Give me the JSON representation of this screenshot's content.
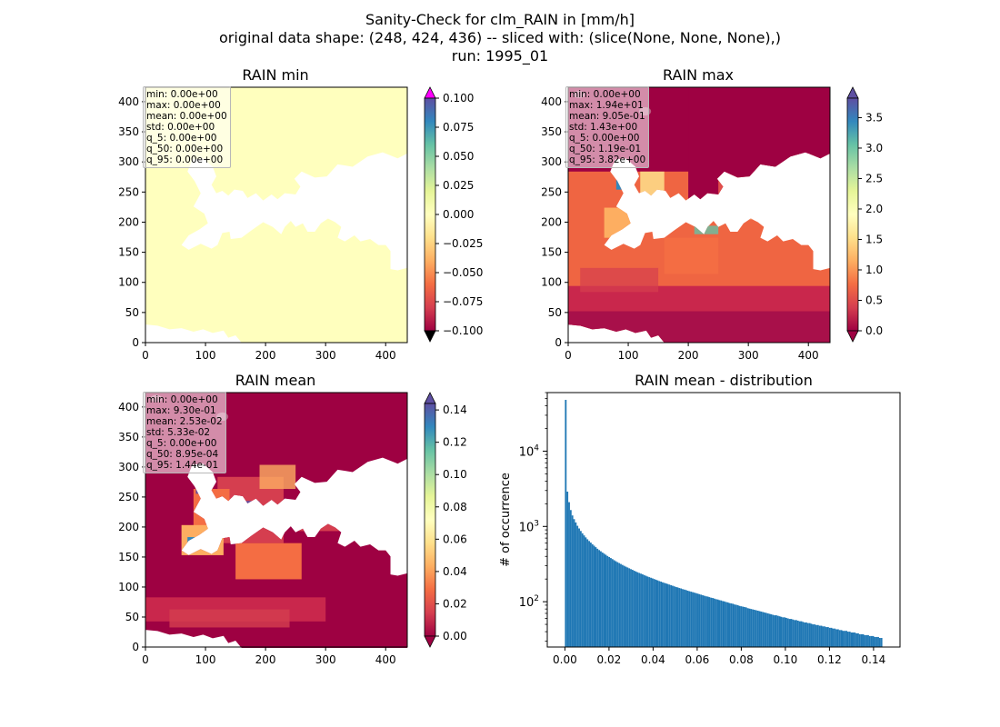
{
  "figure": {
    "suptitle_lines": [
      "Sanity-Check for clm_RAIN in [mm/h]",
      "original data shape: (248, 424, 436) -- sliced with: (slice(None, None, None),)",
      "run: 1995_01"
    ]
  },
  "chart_data": [
    {
      "type": "heatmap",
      "title": "RAIN min",
      "xlim": [
        0,
        436
      ],
      "ylim": [
        0,
        424
      ],
      "x_ticks": [
        "0",
        "100",
        "200",
        "300",
        "400"
      ],
      "y_ticks": [
        "0",
        "50",
        "100",
        "150",
        "200",
        "250",
        "300",
        "350",
        "400"
      ],
      "colormap": "Spectral",
      "colorbar": {
        "vmin": -0.1,
        "vmax": 0.1,
        "ticks": [
          "0.100",
          "0.075",
          "0.050",
          "0.025",
          "0.000",
          "−0.025",
          "−0.050",
          "−0.075",
          "−0.100"
        ],
        "extend": "both",
        "over_color": "#ff00ff",
        "under_color": "#000000"
      },
      "stats": [
        "min: 0.00e+00",
        "max: 0.00e+00",
        "mean: 0.00e+00",
        "std: 0.00e+00",
        "q_5: 0.00e+00",
        "q_50: 0.00e+00",
        "q_95: 0.00e+00"
      ],
      "field_color": "#ffffbe"
    },
    {
      "type": "heatmap",
      "title": "RAIN max",
      "xlim": [
        0,
        436
      ],
      "ylim": [
        0,
        424
      ],
      "x_ticks": [
        "0",
        "100",
        "200",
        "300",
        "400"
      ],
      "y_ticks": [
        "0",
        "50",
        "100",
        "150",
        "200",
        "250",
        "300",
        "350",
        "400"
      ],
      "colormap": "Spectral",
      "colorbar": {
        "vmin": 0.0,
        "vmax": 3.82,
        "ticks": [
          "3.5",
          "3.0",
          "2.5",
          "2.0",
          "1.5",
          "1.0",
          "0.5",
          "0.0"
        ],
        "extend": "both"
      },
      "stats": [
        "min: 0.00e+00",
        "max: 1.94e+01",
        "mean: 9.05e-01",
        "std: 1.43e+00",
        "q_5: 0.00e+00",
        "q_50: 1.19e-01",
        "q_95: 3.82e+00"
      ]
    },
    {
      "type": "heatmap",
      "title": "RAIN mean",
      "xlim": [
        0,
        436
      ],
      "ylim": [
        0,
        424
      ],
      "x_ticks": [
        "0",
        "100",
        "200",
        "300",
        "400"
      ],
      "y_ticks": [
        "0",
        "50",
        "100",
        "150",
        "200",
        "250",
        "300",
        "350",
        "400"
      ],
      "colormap": "Spectral",
      "colorbar": {
        "vmin": 0.0,
        "vmax": 0.144,
        "ticks": [
          "0.14",
          "0.12",
          "0.10",
          "0.08",
          "0.06",
          "0.04",
          "0.02",
          "0.00"
        ],
        "extend": "both"
      },
      "stats": [
        "min: 0.00e+00",
        "max: 9.30e-01",
        "mean: 2.53e-02",
        "std: 5.33e-02",
        "q_5: 0.00e+00",
        "q_50: 8.95e-04",
        "q_95: 1.44e-01"
      ]
    },
    {
      "type": "bar",
      "title": "RAIN mean - distribution",
      "ylabel": "# of occurrence",
      "yscale": "log",
      "xlim": [
        -0.008,
        0.152
      ],
      "ylim": [
        25,
        60000
      ],
      "x_ticks": [
        "0.00",
        "0.02",
        "0.04",
        "0.06",
        "0.08",
        "0.10",
        "0.12",
        "0.14"
      ],
      "y_ticks": [
        {
          "base": "10",
          "exp": "2",
          "value": 100
        },
        {
          "base": "10",
          "exp": "3",
          "value": 1000
        },
        {
          "base": "10",
          "exp": "4",
          "value": 10000
        }
      ],
      "bar_color": "#1f77b4",
      "bin_edges": [
        0.0,
        0.144
      ],
      "counts": [
        48000,
        2900,
        2100,
        1650,
        1400,
        1250,
        1130,
        1020,
        940,
        870,
        810,
        760,
        715,
        675,
        640,
        610,
        580,
        555,
        530,
        505,
        485,
        468,
        450,
        435,
        420,
        405,
        392,
        380,
        368,
        356,
        345,
        335,
        326,
        317,
        308,
        300,
        292,
        285,
        278,
        271,
        265,
        258,
        252,
        246,
        241,
        236,
        231,
        226,
        221,
        216,
        212,
        208,
        204,
        200,
        196,
        192,
        188,
        185,
        181,
        178,
        175,
        172,
        169,
        166,
        163,
        160,
        157,
        155,
        152,
        150,
        147,
        145,
        143,
        140,
        138,
        136,
        134,
        132,
        130,
        128,
        126,
        124,
        122,
        120,
        118,
        117,
        115,
        113,
        112,
        110,
        108,
        107,
        105,
        104,
        102,
        101,
        99,
        98,
        96,
        95,
        94,
        92,
        91,
        90,
        88,
        87,
        86,
        85,
        84,
        82,
        81,
        80,
        79,
        78,
        77,
        76,
        75,
        74,
        73,
        72,
        71,
        70,
        69,
        68,
        67,
        66,
        66,
        65,
        64,
        63,
        62,
        62,
        61,
        60,
        59,
        59,
        58,
        57,
        57,
        56,
        55,
        55,
        54,
        53,
        53,
        52,
        52,
        51,
        50,
        50,
        49,
        49,
        48,
        48,
        47,
        47,
        46,
        46,
        45,
        45,
        44,
        44,
        43,
        43,
        42,
        42,
        41,
        41,
        41,
        40,
        40,
        39,
        39,
        39,
        38,
        38,
        37,
        37,
        37,
        36,
        36,
        36,
        35,
        35,
        35,
        34,
        34,
        34,
        33,
        33
      ]
    }
  ]
}
